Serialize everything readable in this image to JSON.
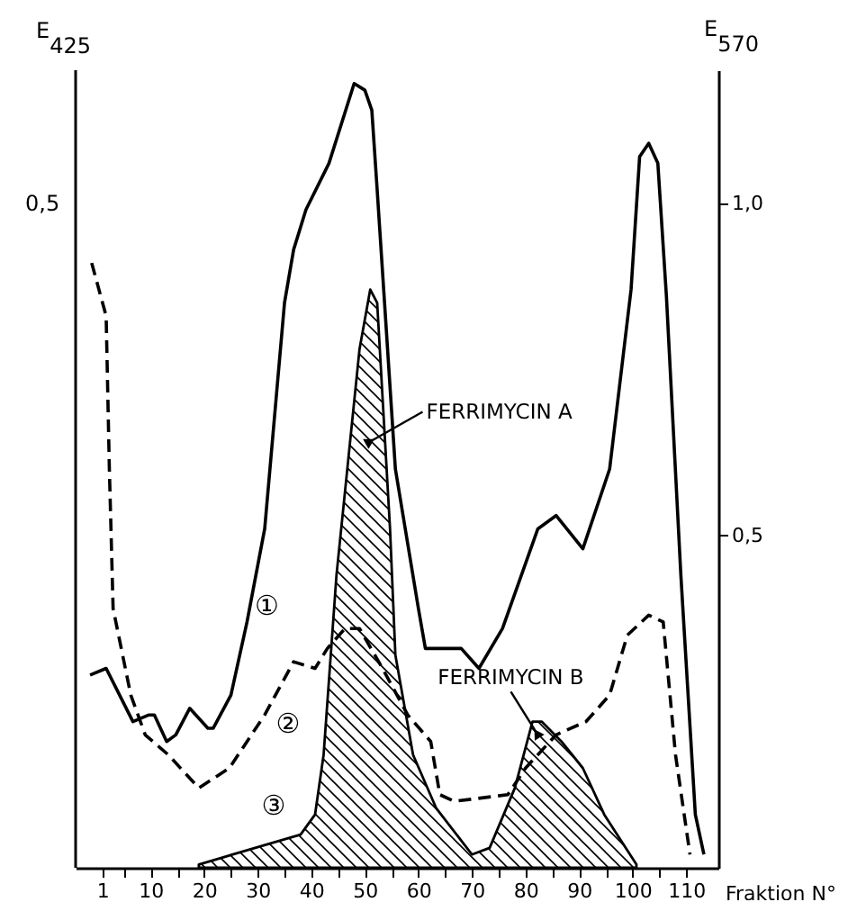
{
  "chart_data": {
    "type": "line",
    "xlabel": "Fraktion N°",
    "ylabel": "E$_{570}$",
    "xlim": [
      -4,
      116
    ],
    "xticks": [
      1,
      {
        "value": 5,
        "label": null
      },
      10,
      {
        "value": 15,
        "label": null
      },
      20,
      {
        "value": 25,
        "label": null
      },
      30,
      {
        "value": 35,
        "label": null
      },
      40,
      {
        "value": 45,
        "label": null
      },
      50,
      {
        "value": 55,
        "label": null
      },
      60,
      {
        "value": 65,
        "label": null
      },
      70,
      {
        "value": 75,
        "label": null
      },
      80,
      {
        "value": 85,
        "label": null
      },
      90,
      {
        "value": 95,
        "label": null
      },
      100,
      {
        "value": 105,
        "label": null
      },
      110
    ],
    "ylim": [
      0,
      1.2
    ],
    "yticks": [
      {
        "value": 0.5,
        "label": "0,5"
      },
      {
        "value": 1.0,
        "label": "1,0"
      }
    ],
    "grid": false,
    "marker": "none",
    "annotations": [
      "E$_{425}$",
      "0,5",
      {
        "text": "FERRIMYCIN A",
        "x": 50.7,
        "y": 0.64
      },
      {
        "text": "FERRIMYCIN B",
        "x": 82.3,
        "y": 0.2
      }
    ],
    "series": [
      {
        "name": "①",
        "color": "#000000",
        "line_style": "solid",
        "x": [
          -1.3,
          1.7,
          6.7,
          9.7,
          10.7,
          13,
          14.7,
          17.3,
          20.7,
          21.7,
          25,
          28,
          31.3,
          35,
          36.7,
          39,
          43.3,
          48,
          50,
          51.3,
          52.3,
          55.7,
          60,
          61.3,
          66.7,
          68,
          71.3,
          75.7,
          82.3,
          85.7,
          90.7,
          95.7,
          99.7,
          101.3,
          103,
          104.7,
          106.3,
          109,
          111.7,
          113.3
        ],
        "values": [
          0.29,
          0.3,
          0.22,
          0.23,
          0.23,
          0.19,
          0.2,
          0.24,
          0.21,
          0.21,
          0.26,
          0.37,
          0.51,
          0.85,
          0.93,
          0.99,
          1.06,
          1.18,
          1.17,
          1.14,
          1.02,
          0.6,
          0.39,
          0.33,
          0.33,
          0.33,
          0.3,
          0.36,
          0.51,
          0.53,
          0.48,
          0.6,
          0.87,
          1.07,
          1.09,
          1.06,
          0.86,
          0.44,
          0.08,
          0.02
        ]
      },
      {
        "name": "②",
        "color": "#000000",
        "line_style": "dashed",
        "x": [
          -1,
          1.7,
          2.3,
          3,
          6.3,
          9,
          13.3,
          19,
          24.7,
          31.3,
          36.7,
          40.7,
          43,
          46.3,
          49,
          53.3,
          58,
          62.3,
          64,
          66.7,
          76.7,
          80,
          85.7,
          91.3,
          95.7,
          99,
          103,
          105.7,
          108,
          110.7
        ],
        "values": [
          0.91,
          0.83,
          0.6,
          0.39,
          0.26,
          0.2,
          0.17,
          0.12,
          0.15,
          0.23,
          0.31,
          0.3,
          0.33,
          0.36,
          0.36,
          0.3,
          0.23,
          0.19,
          0.11,
          0.1,
          0.11,
          0.15,
          0.2,
          0.22,
          0.26,
          0.35,
          0.38,
          0.37,
          0.17,
          0.02
        ]
      },
      {
        "name": "③",
        "type": "area",
        "color": "#000000",
        "line_style": "solid",
        "x": [
          19,
          38,
          40.7,
          42.3,
          44.7,
          49,
          51,
          52.3,
          54.7,
          55.7,
          59,
          63.3,
          70,
          73.3,
          78,
          81.3,
          83,
          86.7,
          90.7,
          94.7,
          100.7
        ],
        "values": [
          0.005,
          0.05,
          0.08,
          0.17,
          0.44,
          0.78,
          0.87,
          0.85,
          0.51,
          0.32,
          0.17,
          0.09,
          0.02,
          0.03,
          0.12,
          0.22,
          0.22,
          0.19,
          0.15,
          0.08,
          0.005
        ]
      }
    ]
  }
}
